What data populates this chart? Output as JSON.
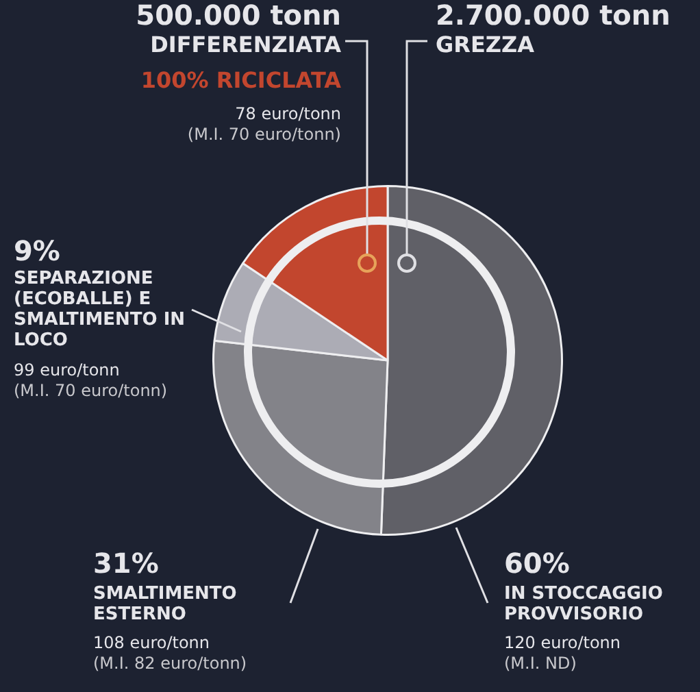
{
  "chart_data": {
    "type": "pie",
    "categories": [
      "IN STOCCAGGIO PROVVISORIO",
      "SMALTIMENTO ESTERNO",
      "SEPARAZIONE (ECOBALLE) E SMALTIMENTO IN LOCO",
      "DIFFERENZIATA"
    ],
    "values": [
      50.6,
      26.2,
      7.6,
      15.6
    ],
    "colors": [
      "#606067",
      "#838389",
      "#acacb5",
      "#c2462e"
    ],
    "legend": false,
    "annotations": [
      "500.000 tonn",
      "2.700.000 tonn",
      "GREZZA",
      "100% RICICLATA",
      "78 euro/tonn",
      "(M.I. 70 euro/tonn)",
      "9%",
      "99 euro/tonn",
      "(M.I. 70 euro/tonn)",
      "31%",
      "108 euro/tonn",
      "(M.I. 82 euro/tonn)",
      "60%",
      "120 euro/tonn",
      "(M.I. ND)"
    ]
  }
}
